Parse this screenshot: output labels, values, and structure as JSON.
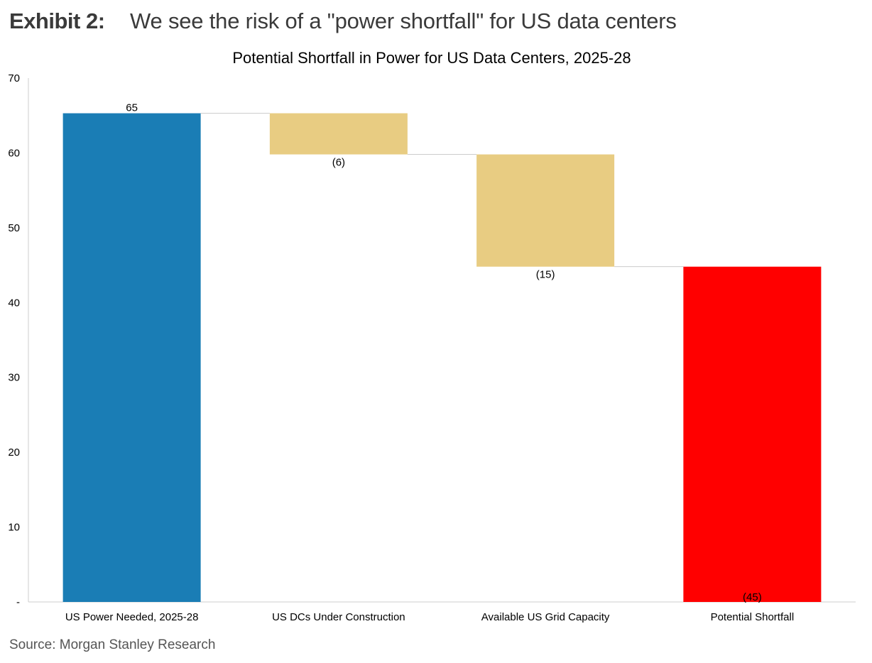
{
  "exhibit": {
    "label": "Exhibit 2:",
    "title": "We see the risk of a \"power shortfall\" for US data centers"
  },
  "source": "Source: Morgan Stanley Research",
  "colors": {
    "start_bar": "#1a7db5",
    "step_bar": "#e8cc82",
    "end_bar": "#ff0000",
    "axis": "#cccccc",
    "connector": "#cccccc"
  },
  "chart_data": {
    "type": "bar",
    "subtype": "waterfall",
    "title": "Potential Shortfall in Power for US Data Centers, 2025-28",
    "xlabel": "",
    "ylabel": "",
    "ylim": [
      0,
      70
    ],
    "yticks": [
      0,
      10,
      20,
      30,
      40,
      50,
      60,
      70
    ],
    "ytick_labels": [
      "-",
      "10",
      "20",
      "30",
      "40",
      "50",
      "60",
      "70"
    ],
    "grid": false,
    "legend": "none",
    "categories": [
      "US Power Needed, 2025-28",
      "US DCs Under Construction",
      "Available US Grid Capacity",
      "Potential Shortfall"
    ],
    "bars": [
      {
        "kind": "start",
        "base": 0,
        "top": 65.3,
        "label": "65"
      },
      {
        "kind": "step",
        "base": 59.8,
        "top": 65.3,
        "label": "(6)"
      },
      {
        "kind": "step",
        "base": 44.8,
        "top": 59.8,
        "label": "(15)"
      },
      {
        "kind": "end",
        "base": 0,
        "top": 44.8,
        "label": "(45)"
      }
    ]
  }
}
